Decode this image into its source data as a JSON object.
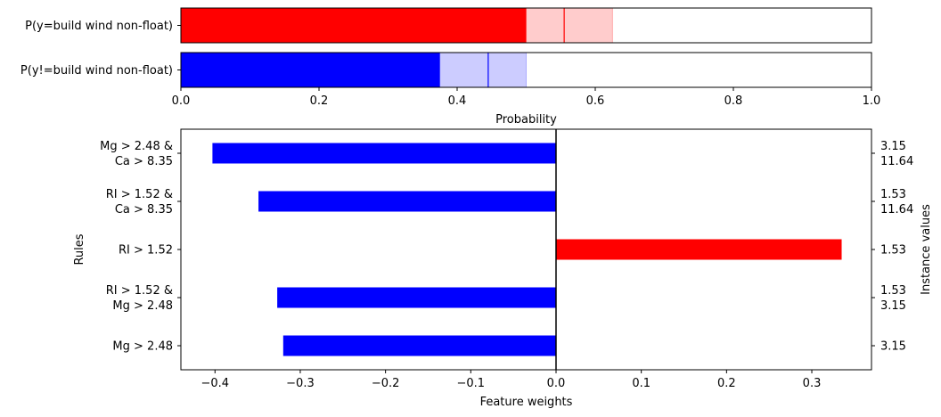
{
  "chart_data": [
    {
      "type": "bar",
      "orientation": "horizontal",
      "categories": [
        "P(y=build wind non-float)",
        "P(y!=build wind non-float)"
      ],
      "series": [
        {
          "category": "P(y=build wind non-float)",
          "value": 0.555,
          "interval": [
            0.5,
            0.625
          ],
          "color": "#ff0000",
          "interval_color": "#ffcccc"
        },
        {
          "category": "P(y!=build wind non-float)",
          "value": 0.445,
          "interval": [
            0.375,
            0.5
          ],
          "color": "#0000ff",
          "interval_color": "#ccccff"
        }
      ],
      "xlim": [
        0,
        1
      ],
      "xticks": [
        "0.0",
        "0.2",
        "0.4",
        "0.6",
        "0.8",
        "1.0"
      ],
      "xtick_values": [
        0,
        0.2,
        0.4,
        0.6,
        0.8,
        1.0
      ],
      "xlabel": "Probability"
    },
    {
      "type": "bar",
      "orientation": "horizontal",
      "rules": [
        {
          "label": [
            "Mg > 2.48 &",
            "Ca > 8.35"
          ],
          "weight": -0.403,
          "instance": [
            "3.15",
            "11.64"
          ]
        },
        {
          "label": [
            "RI > 1.52 &",
            "Ca > 8.35"
          ],
          "weight": -0.349,
          "instance": [
            "1.53",
            "11.64"
          ]
        },
        {
          "label": [
            "RI > 1.52"
          ],
          "weight": 0.335,
          "instance": [
            "1.53"
          ]
        },
        {
          "label": [
            "RI > 1.52 &",
            "Mg > 2.48"
          ],
          "weight": -0.327,
          "instance": [
            "1.53",
            "3.15"
          ]
        },
        {
          "label": [
            "Mg > 2.48"
          ],
          "weight": -0.32,
          "instance": [
            "3.15"
          ]
        }
      ],
      "xlim": [
        -0.44,
        0.37
      ],
      "xticks": [
        "−0.4",
        "−0.3",
        "−0.2",
        "−0.1",
        "0.0",
        "0.1",
        "0.2",
        "0.3"
      ],
      "xtick_values": [
        -0.4,
        -0.3,
        -0.2,
        -0.1,
        0,
        0.1,
        0.2,
        0.3
      ],
      "xlabel": "Feature weights",
      "ylabel": "Rules",
      "ylabel_right": "Instance values",
      "positive_color": "#ff0000",
      "negative_color": "#0000ff"
    }
  ]
}
